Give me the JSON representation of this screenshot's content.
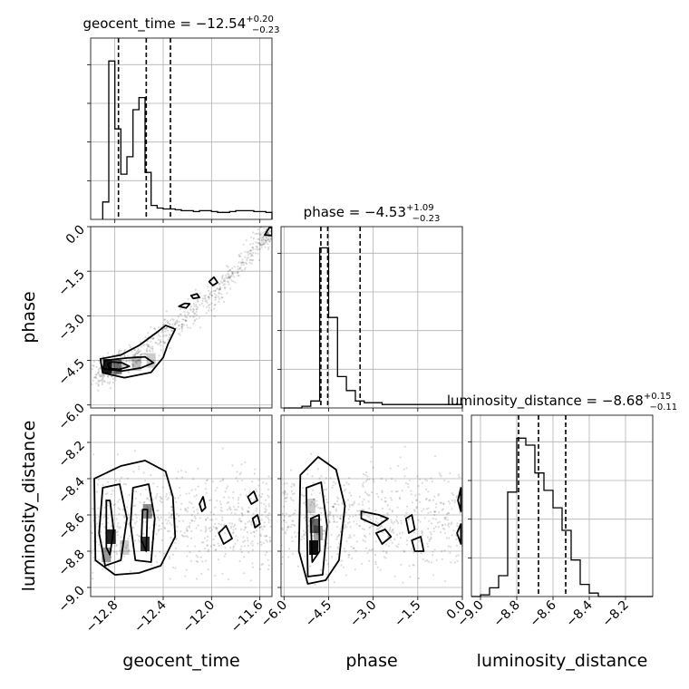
{
  "chart_data": {
    "type": "corner",
    "parameters": [
      "geocent_time",
      "phase",
      "luminosity_distance"
    ],
    "xlabels": [
      "geocent_time",
      "phase",
      "luminosity_distance"
    ],
    "ylabels": {
      "phase": "phase",
      "luminosity_distance": "luminosity_distance"
    },
    "ranges": {
      "geocent_time": [
        -13.0,
        -11.5
      ],
      "phase": [
        -6.1,
        0.0
      ],
      "luminosity_distance": [
        -9.05,
        -8.05
      ]
    },
    "grid": true,
    "color": "#000000",
    "summaries": [
      {
        "param": "geocent_time",
        "title": "geocent_time = −12.54",
        "sup": "+0.20",
        "sub": "−0.23",
        "median": -12.54,
        "q16": -12.77,
        "q84": -12.34
      },
      {
        "param": "phase",
        "title": "phase = −4.53",
        "sup": "+1.09",
        "sub": "−0.23",
        "median": -4.53,
        "q16": -4.76,
        "q84": -3.44
      },
      {
        "param": "luminosity_distance",
        "title": "luminosity_distance = −8.68",
        "sup": "+0.15",
        "sub": "−0.11",
        "median": -8.68,
        "q16": -8.79,
        "q84": -8.53
      }
    ],
    "histograms": {
      "geocent_time": {
        "edges": [
          -12.9,
          -12.85,
          -12.8,
          -12.75,
          -12.7,
          -12.65,
          -12.6,
          -12.55,
          -12.5,
          -12.45,
          -12.4,
          -12.35,
          -12.3,
          -12.25,
          -12.2,
          -12.15,
          -12.1,
          -12.05,
          -12.0,
          -11.95,
          -11.9,
          -11.85,
          -11.8,
          -11.75,
          -11.7,
          -11.65,
          -11.6,
          -11.55,
          -11.5
        ],
        "counts": [
          0.1,
          0.91,
          0.52,
          0.26,
          0.36,
          0.63,
          0.7,
          0.27,
          0.08,
          0.065,
          0.06,
          0.06,
          0.055,
          0.05,
          0.05,
          0.045,
          0.05,
          0.05,
          0.045,
          0.04,
          0.04,
          0.045,
          0.05,
          0.05,
          0.05,
          0.045,
          0.045,
          0.04
        ]
      },
      "phase": {
        "edges": [
          -6.0,
          -5.7,
          -5.4,
          -5.1,
          -4.8,
          -4.5,
          -4.2,
          -3.9,
          -3.6,
          -3.3,
          -3.0,
          -2.7,
          -2.4,
          -2.1,
          -1.8,
          -1.5,
          -1.2,
          -0.9,
          -0.6,
          -0.3,
          0.0
        ],
        "counts": [
          0.0,
          0.0,
          0.01,
          0.04,
          0.92,
          0.52,
          0.18,
          0.1,
          0.04,
          0.03,
          0.03,
          0.02,
          0.02,
          0.02,
          0.02,
          0.02,
          0.02,
          0.02,
          0.02,
          0.02
        ]
      },
      "luminosity_distance": {
        "edges": [
          -9.05,
          -9.0,
          -8.95,
          -8.9,
          -8.85,
          -8.8,
          -8.75,
          -8.7,
          -8.65,
          -8.6,
          -8.55,
          -8.5,
          -8.45,
          -8.4,
          -8.35,
          -8.3,
          -8.25,
          -8.2,
          -8.15,
          -8.1,
          -8.05
        ],
        "counts": [
          0.0,
          0.01,
          0.05,
          0.12,
          0.6,
          0.91,
          0.87,
          0.71,
          0.61,
          0.51,
          0.38,
          0.21,
          0.07,
          0.02,
          0.0,
          0.0,
          0.0,
          0.0,
          0.0,
          0.0
        ]
      }
    },
    "panels": {
      "phase_vs_geocent_time": {
        "x": "geocent_time",
        "y": "phase",
        "ridge": [
          [
            -12.95,
            -5.1
          ],
          [
            -12.8,
            -4.7
          ],
          [
            -12.6,
            -4.3
          ],
          [
            -12.4,
            -3.6
          ],
          [
            -12.2,
            -3.0
          ],
          [
            -12.0,
            -2.4
          ],
          [
            -11.8,
            -1.5
          ],
          [
            -11.6,
            -0.5
          ],
          [
            -11.5,
            -0.1
          ]
        ],
        "contours": [
          [
            [
              -12.86,
              -4.62
            ],
            [
              -12.82,
              -4.55
            ],
            [
              -12.74,
              -4.58
            ],
            [
              -12.68,
              -4.7
            ],
            [
              -12.76,
              -4.8
            ],
            [
              -12.84,
              -4.78
            ]
          ],
          [
            [
              -12.88,
              -4.5
            ],
            [
              -12.7,
              -4.42
            ],
            [
              -12.55,
              -4.38
            ],
            [
              -12.48,
              -4.58
            ],
            [
              -12.58,
              -4.75
            ],
            [
              -12.74,
              -4.86
            ],
            [
              -12.9,
              -4.78
            ]
          ],
          [
            [
              -12.92,
              -4.45
            ],
            [
              -12.75,
              -4.32
            ],
            [
              -12.6,
              -4.0
            ],
            [
              -12.45,
              -3.55
            ],
            [
              -12.38,
              -3.32
            ],
            [
              -12.3,
              -3.45
            ],
            [
              -12.36,
              -3.95
            ],
            [
              -12.4,
              -4.4
            ],
            [
              -12.5,
              -4.9
            ],
            [
              -12.72,
              -5.08
            ],
            [
              -12.9,
              -4.92
            ]
          ],
          [
            [
              -12.27,
              -2.68
            ],
            [
              -12.22,
              -2.58
            ],
            [
              -12.18,
              -2.6
            ],
            [
              -12.21,
              -2.74
            ]
          ],
          [
            [
              -12.17,
              -2.32
            ],
            [
              -12.12,
              -2.26
            ],
            [
              -12.1,
              -2.38
            ],
            [
              -12.15,
              -2.42
            ]
          ],
          [
            [
              -12.02,
              -1.85
            ],
            [
              -11.98,
              -1.7
            ],
            [
              -11.95,
              -1.88
            ],
            [
              -11.99,
              -1.98
            ]
          ],
          [
            [
              -11.56,
              -0.28
            ],
            [
              -11.52,
              -0.02
            ],
            [
              -11.5,
              -0.05
            ],
            [
              -11.5,
              -0.3
            ]
          ]
        ],
        "cores": [
          [
            -12.86,
            -4.7,
            0.9
          ],
          [
            -12.78,
            -4.72,
            0.55
          ],
          [
            -12.62,
            -4.6,
            0.25
          ],
          [
            -12.5,
            -4.5,
            0.2
          ]
        ]
      },
      "luminosity_distance_vs_geocent_time": {
        "x": "geocent_time",
        "y": "luminosity_distance",
        "contours": [
          [
            [
              -12.87,
              -8.52
            ],
            [
              -12.84,
              -8.52
            ],
            [
              -12.81,
              -8.68
            ],
            [
              -12.84,
              -8.82
            ],
            [
              -12.87,
              -8.78
            ]
          ],
          [
            [
              -12.57,
              -8.57
            ],
            [
              -12.53,
              -8.57
            ],
            [
              -12.54,
              -8.8
            ],
            [
              -12.58,
              -8.74
            ]
          ],
          [
            [
              -12.9,
              -8.45
            ],
            [
              -12.76,
              -8.43
            ],
            [
              -12.7,
              -8.62
            ],
            [
              -12.75,
              -8.85
            ],
            [
              -12.88,
              -8.88
            ],
            [
              -12.93,
              -8.7
            ]
          ],
          [
            [
              -12.65,
              -8.45
            ],
            [
              -12.52,
              -8.43
            ],
            [
              -12.47,
              -8.62
            ],
            [
              -12.5,
              -8.86
            ],
            [
              -12.63,
              -8.85
            ],
            [
              -12.67,
              -8.65
            ]
          ],
          [
            [
              -12.97,
              -8.4
            ],
            [
              -12.75,
              -8.33
            ],
            [
              -12.55,
              -8.3
            ],
            [
              -12.38,
              -8.36
            ],
            [
              -12.32,
              -8.5
            ],
            [
              -12.3,
              -8.72
            ],
            [
              -12.42,
              -8.88
            ],
            [
              -12.6,
              -8.92
            ],
            [
              -12.8,
              -8.93
            ],
            [
              -12.96,
              -8.85
            ]
          ],
          [
            [
              -12.1,
              -8.54
            ],
            [
              -12.07,
              -8.5
            ],
            [
              -12.05,
              -8.56
            ],
            [
              -12.08,
              -8.58
            ]
          ],
          [
            [
              -11.94,
              -8.7
            ],
            [
              -11.88,
              -8.66
            ],
            [
              -11.83,
              -8.73
            ],
            [
              -11.9,
              -8.76
            ]
          ],
          [
            [
              -11.7,
              -8.5
            ],
            [
              -11.65,
              -8.47
            ],
            [
              -11.62,
              -8.52
            ],
            [
              -11.67,
              -8.54
            ]
          ],
          [
            [
              -11.66,
              -8.62
            ],
            [
              -11.62,
              -8.6
            ],
            [
              -11.6,
              -8.65
            ],
            [
              -11.64,
              -8.67
            ]
          ]
        ],
        "cores": [
          [
            -12.83,
            -8.72,
            0.85
          ],
          [
            -12.55,
            -8.76,
            0.8
          ],
          [
            -12.87,
            -8.82,
            0.4
          ],
          [
            -12.53,
            -8.58,
            0.45
          ],
          [
            -12.72,
            -8.78,
            0.2
          ]
        ]
      },
      "luminosity_distance_vs_phase": {
        "x": "phase",
        "y": "luminosity_distance",
        "contours": [
          [
            [
              -5.1,
              -8.62
            ],
            [
              -4.82,
              -8.6
            ],
            [
              -4.8,
              -8.8
            ],
            [
              -5.05,
              -8.86
            ]
          ],
          [
            [
              -5.25,
              -8.45
            ],
            [
              -4.75,
              -8.42
            ],
            [
              -4.55,
              -8.66
            ],
            [
              -4.7,
              -8.93
            ],
            [
              -5.2,
              -8.94
            ]
          ],
          [
            [
              -5.45,
              -8.38
            ],
            [
              -4.85,
              -8.28
            ],
            [
              -4.25,
              -8.35
            ],
            [
              -3.95,
              -8.55
            ],
            [
              -4.15,
              -8.85
            ],
            [
              -4.6,
              -8.96
            ],
            [
              -5.2,
              -8.98
            ],
            [
              -5.5,
              -8.8
            ]
          ],
          [
            [
              -3.4,
              -8.58
            ],
            [
              -2.8,
              -8.6
            ],
            [
              -2.5,
              -8.62
            ],
            [
              -2.85,
              -8.66
            ],
            [
              -3.4,
              -8.62
            ]
          ],
          [
            [
              -2.9,
              -8.7
            ],
            [
              -2.6,
              -8.68
            ],
            [
              -2.4,
              -8.72
            ],
            [
              -2.7,
              -8.76
            ]
          ],
          [
            [
              -1.9,
              -8.62
            ],
            [
              -1.7,
              -8.6
            ],
            [
              -1.6,
              -8.68
            ],
            [
              -1.8,
              -8.7
            ]
          ],
          [
            [
              -1.7,
              -8.74
            ],
            [
              -1.4,
              -8.72
            ],
            [
              -1.3,
              -8.8
            ],
            [
              -1.6,
              -8.8
            ]
          ],
          [
            [
              -0.05,
              -8.45
            ],
            [
              -0.15,
              -8.52
            ],
            [
              -0.05,
              -8.58
            ]
          ],
          [
            [
              -0.05,
              -8.65
            ],
            [
              -0.18,
              -8.7
            ],
            [
              -0.05,
              -8.76
            ]
          ]
        ],
        "cores": [
          [
            -5.0,
            -8.78,
            0.95
          ],
          [
            -4.98,
            -8.66,
            0.6
          ],
          [
            -4.85,
            -8.7,
            0.35
          ],
          [
            -5.1,
            -8.55,
            0.2
          ]
        ]
      }
    }
  }
}
